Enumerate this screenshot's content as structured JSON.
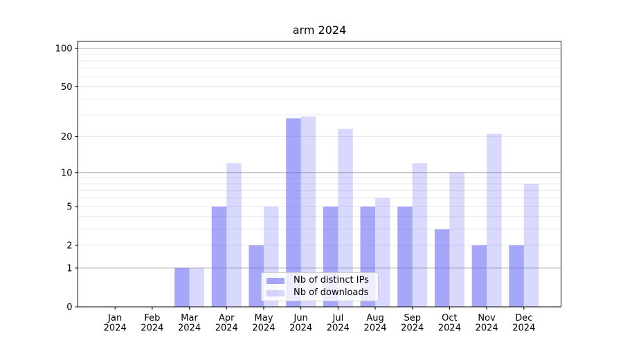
{
  "title": "arm 2024",
  "chart_data": {
    "type": "bar",
    "title": "arm 2024",
    "categories": [
      "Jan 2024",
      "Feb 2024",
      "Mar 2024",
      "Apr 2024",
      "May 2024",
      "Jun 2024",
      "Jul 2024",
      "Aug 2024",
      "Sep 2024",
      "Oct 2024",
      "Nov 2024",
      "Dec 2024"
    ],
    "series": [
      {
        "name": "Nb of distinct IPs",
        "color": "rgba(80,80,245,0.50)",
        "values": [
          0,
          0,
          1,
          5,
          2,
          28,
          5,
          5,
          5,
          3,
          2,
          2
        ]
      },
      {
        "name": "Nb of downloads",
        "color": "rgba(80,80,245,0.22)",
        "values": [
          0,
          0,
          1,
          12,
          5,
          29,
          23,
          6,
          12,
          10,
          21,
          8
        ]
      }
    ],
    "xlabel": "",
    "ylabel": "",
    "yticks": [
      0,
      1,
      2,
      5,
      10,
      20,
      50,
      100
    ],
    "ylim": [
      0,
      114
    ],
    "scale": "log1p",
    "grid": {
      "major": [
        1,
        10,
        100
      ],
      "minor": [
        2,
        3,
        4,
        5,
        6,
        7,
        8,
        9,
        20,
        30,
        40,
        50,
        60,
        70,
        80,
        90
      ]
    },
    "colors": {
      "grid_major": "#b0b0b0",
      "grid_minor": "#eaeaea",
      "axis": "#000000",
      "legend_border": "#cccccc"
    },
    "legend_position": "lower-center"
  }
}
